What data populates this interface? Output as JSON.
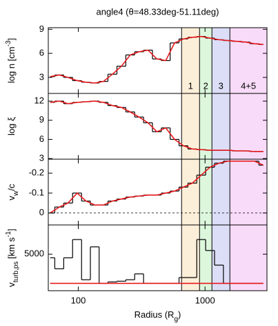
{
  "chart_data": [
    {
      "type": "line",
      "title": "angle4 (θ=48.33deg-51.11deg)",
      "ylabel": [
        {
          "text": "log n [cm",
          "style": "normal"
        },
        {
          "text": "-3",
          "style": "sup"
        },
        {
          "text": "]",
          "style": "normal"
        }
      ],
      "regions": [
        {
          "label": "1",
          "from": 653,
          "to": 905,
          "color": "#fcefd9"
        },
        {
          "label": "2",
          "from": 905,
          "to": 1133,
          "color": "#ddf7dd"
        },
        {
          "label": "3",
          "from": 1133,
          "to": 1570,
          "color": "#dcdef8"
        },
        {
          "label": "4+5",
          "from": 1570,
          "to": 3080,
          "color": "#f8dbf8"
        }
      ],
      "x": [
        60,
        71,
        83,
        98,
        115,
        135,
        158,
        186,
        219,
        257,
        302,
        355,
        417,
        490,
        575,
        676,
        794,
        933,
        1096,
        1288,
        1514,
        1778,
        2089,
        2455,
        2884
      ],
      "series": [
        {
          "color": "#000000",
          "style": "step",
          "values": [
            3.1,
            3.3,
            3.0,
            2.6,
            2.4,
            2.3,
            2.5,
            3.4,
            4.4,
            5.8,
            6.2,
            6.4,
            5.3,
            5.1,
            7.3,
            7.8,
            8.0,
            8.1,
            7.9,
            7.7,
            7.6,
            7.5,
            7.4,
            7.2,
            7.1
          ]
        },
        {
          "color": "#e8191c",
          "style": "line",
          "values": [
            3.1,
            3.3,
            3.0,
            2.6,
            2.4,
            2.3,
            2.5,
            3.4,
            4.4,
            5.8,
            6.2,
            6.4,
            5.3,
            5.1,
            7.3,
            7.8,
            8.0,
            8.1,
            7.9,
            7.7,
            7.6,
            7.5,
            7.4,
            7.2,
            7.1
          ]
        }
      ],
      "ylim": [
        1.0,
        9.2
      ],
      "yticks": [
        3,
        6,
        9
      ]
    },
    {
      "type": "line",
      "ylabel": [
        {
          "text": "log ξ",
          "style": "normal"
        }
      ],
      "x": [
        60,
        71,
        83,
        98,
        115,
        135,
        158,
        186,
        219,
        257,
        302,
        355,
        417,
        490,
        575,
        676,
        794,
        933,
        1096,
        1288,
        1514,
        1778,
        2089,
        2455,
        2884
      ],
      "series": [
        {
          "color": "#000000",
          "style": "step",
          "values": [
            11.8,
            12.0,
            11.6,
            11.8,
            11.9,
            12.0,
            11.8,
            11.3,
            11.0,
            10.3,
            9.5,
            8.6,
            7.2,
            7.8,
            6.0,
            5.0,
            4.5,
            4.4,
            4.3,
            4.3,
            4.3,
            4.2,
            4.2,
            4.1,
            4.1
          ]
        },
        {
          "color": "#e8191c",
          "style": "line",
          "values": [
            11.8,
            12.0,
            11.6,
            11.8,
            11.9,
            12.0,
            11.8,
            11.3,
            11.0,
            10.3,
            9.5,
            8.6,
            7.2,
            7.8,
            6.0,
            5.0,
            4.5,
            4.4,
            4.3,
            4.3,
            4.3,
            4.2,
            4.2,
            4.1,
            4.1
          ]
        }
      ],
      "ylim": [
        2.9,
        13.2
      ],
      "yticks": [
        3,
        6,
        9,
        12
      ]
    },
    {
      "type": "line",
      "ylabel": [
        {
          "text": "v",
          "style": "normal"
        },
        {
          "text": "w",
          "style": "sub"
        },
        {
          "text": "/c",
          "style": "normal"
        }
      ],
      "hline": 0,
      "x": [
        60,
        71,
        83,
        98,
        115,
        135,
        158,
        186,
        219,
        257,
        302,
        355,
        417,
        490,
        575,
        676,
        794,
        933,
        1096,
        1288,
        1514,
        1778,
        2089,
        2455,
        2884
      ],
      "series": [
        {
          "color": "#000000",
          "style": "step",
          "values": [
            0.0,
            -0.03,
            -0.05,
            -0.1,
            -0.06,
            -0.04,
            -0.04,
            -0.06,
            -0.07,
            -0.08,
            -0.085,
            -0.09,
            -0.09,
            -0.1,
            -0.11,
            -0.13,
            -0.15,
            -0.19,
            -0.23,
            -0.25,
            -0.26,
            -0.26,
            -0.26,
            -0.26,
            -0.24
          ]
        },
        {
          "color": "#e8191c",
          "style": "line",
          "values": [
            0.0,
            -0.03,
            -0.05,
            -0.1,
            -0.06,
            -0.04,
            -0.04,
            -0.06,
            -0.07,
            -0.08,
            -0.085,
            -0.09,
            -0.09,
            -0.1,
            -0.11,
            -0.13,
            -0.15,
            -0.19,
            -0.23,
            -0.25,
            -0.26,
            -0.26,
            -0.26,
            -0.26,
            -0.24
          ]
        }
      ],
      "ylim": [
        0.06,
        -0.27
      ],
      "yticks": [
        0,
        -0.1,
        -0.2
      ]
    },
    {
      "type": "line",
      "ylabel": [
        {
          "text": "v",
          "style": "normal"
        },
        {
          "text": "turb,ps",
          "style": "sub"
        },
        {
          "text": " [km s",
          "style": "normal"
        },
        {
          "text": "-1",
          "style": "sup"
        },
        {
          "text": "]",
          "style": "normal"
        }
      ],
      "xlabel": [
        {
          "text": "Radius (R",
          "style": "normal"
        },
        {
          "text": "g",
          "style": "sub"
        },
        {
          "text": ")",
          "style": "normal"
        }
      ],
      "xscale": "log",
      "xlim": [
        58,
        3080
      ],
      "xticks": [
        100,
        1000
      ],
      "x": [
        60,
        71,
        83,
        98,
        115,
        135,
        158,
        186,
        219,
        257,
        302,
        355,
        417,
        490,
        575,
        676,
        794,
        933,
        1096,
        1288,
        1514,
        1778,
        2089,
        2455,
        2884
      ],
      "series": [
        {
          "color": "#000000",
          "style": "step",
          "values": [
            4500,
            3000,
            4500,
            7000,
            1500,
            6000,
            1000,
            1200,
            1300,
            1500,
            2300,
            1000,
            1000,
            1000,
            1000,
            1800,
            1800,
            7000,
            5500,
            3500,
            1000,
            1000,
            1000,
            1000,
            1000
          ]
        },
        {
          "color": "#e8191c",
          "style": "line",
          "values": [
            1000,
            1000,
            1000,
            1000,
            1000,
            1000,
            1000,
            1000,
            1000,
            1000,
            1000,
            1000,
            1000,
            1000,
            1000,
            1000,
            1000,
            1000,
            1000,
            1000,
            1000,
            1000,
            1000,
            1000,
            1000
          ]
        }
      ],
      "ylim": [
        0,
        9000
      ],
      "yticks": [
        5000
      ]
    }
  ]
}
